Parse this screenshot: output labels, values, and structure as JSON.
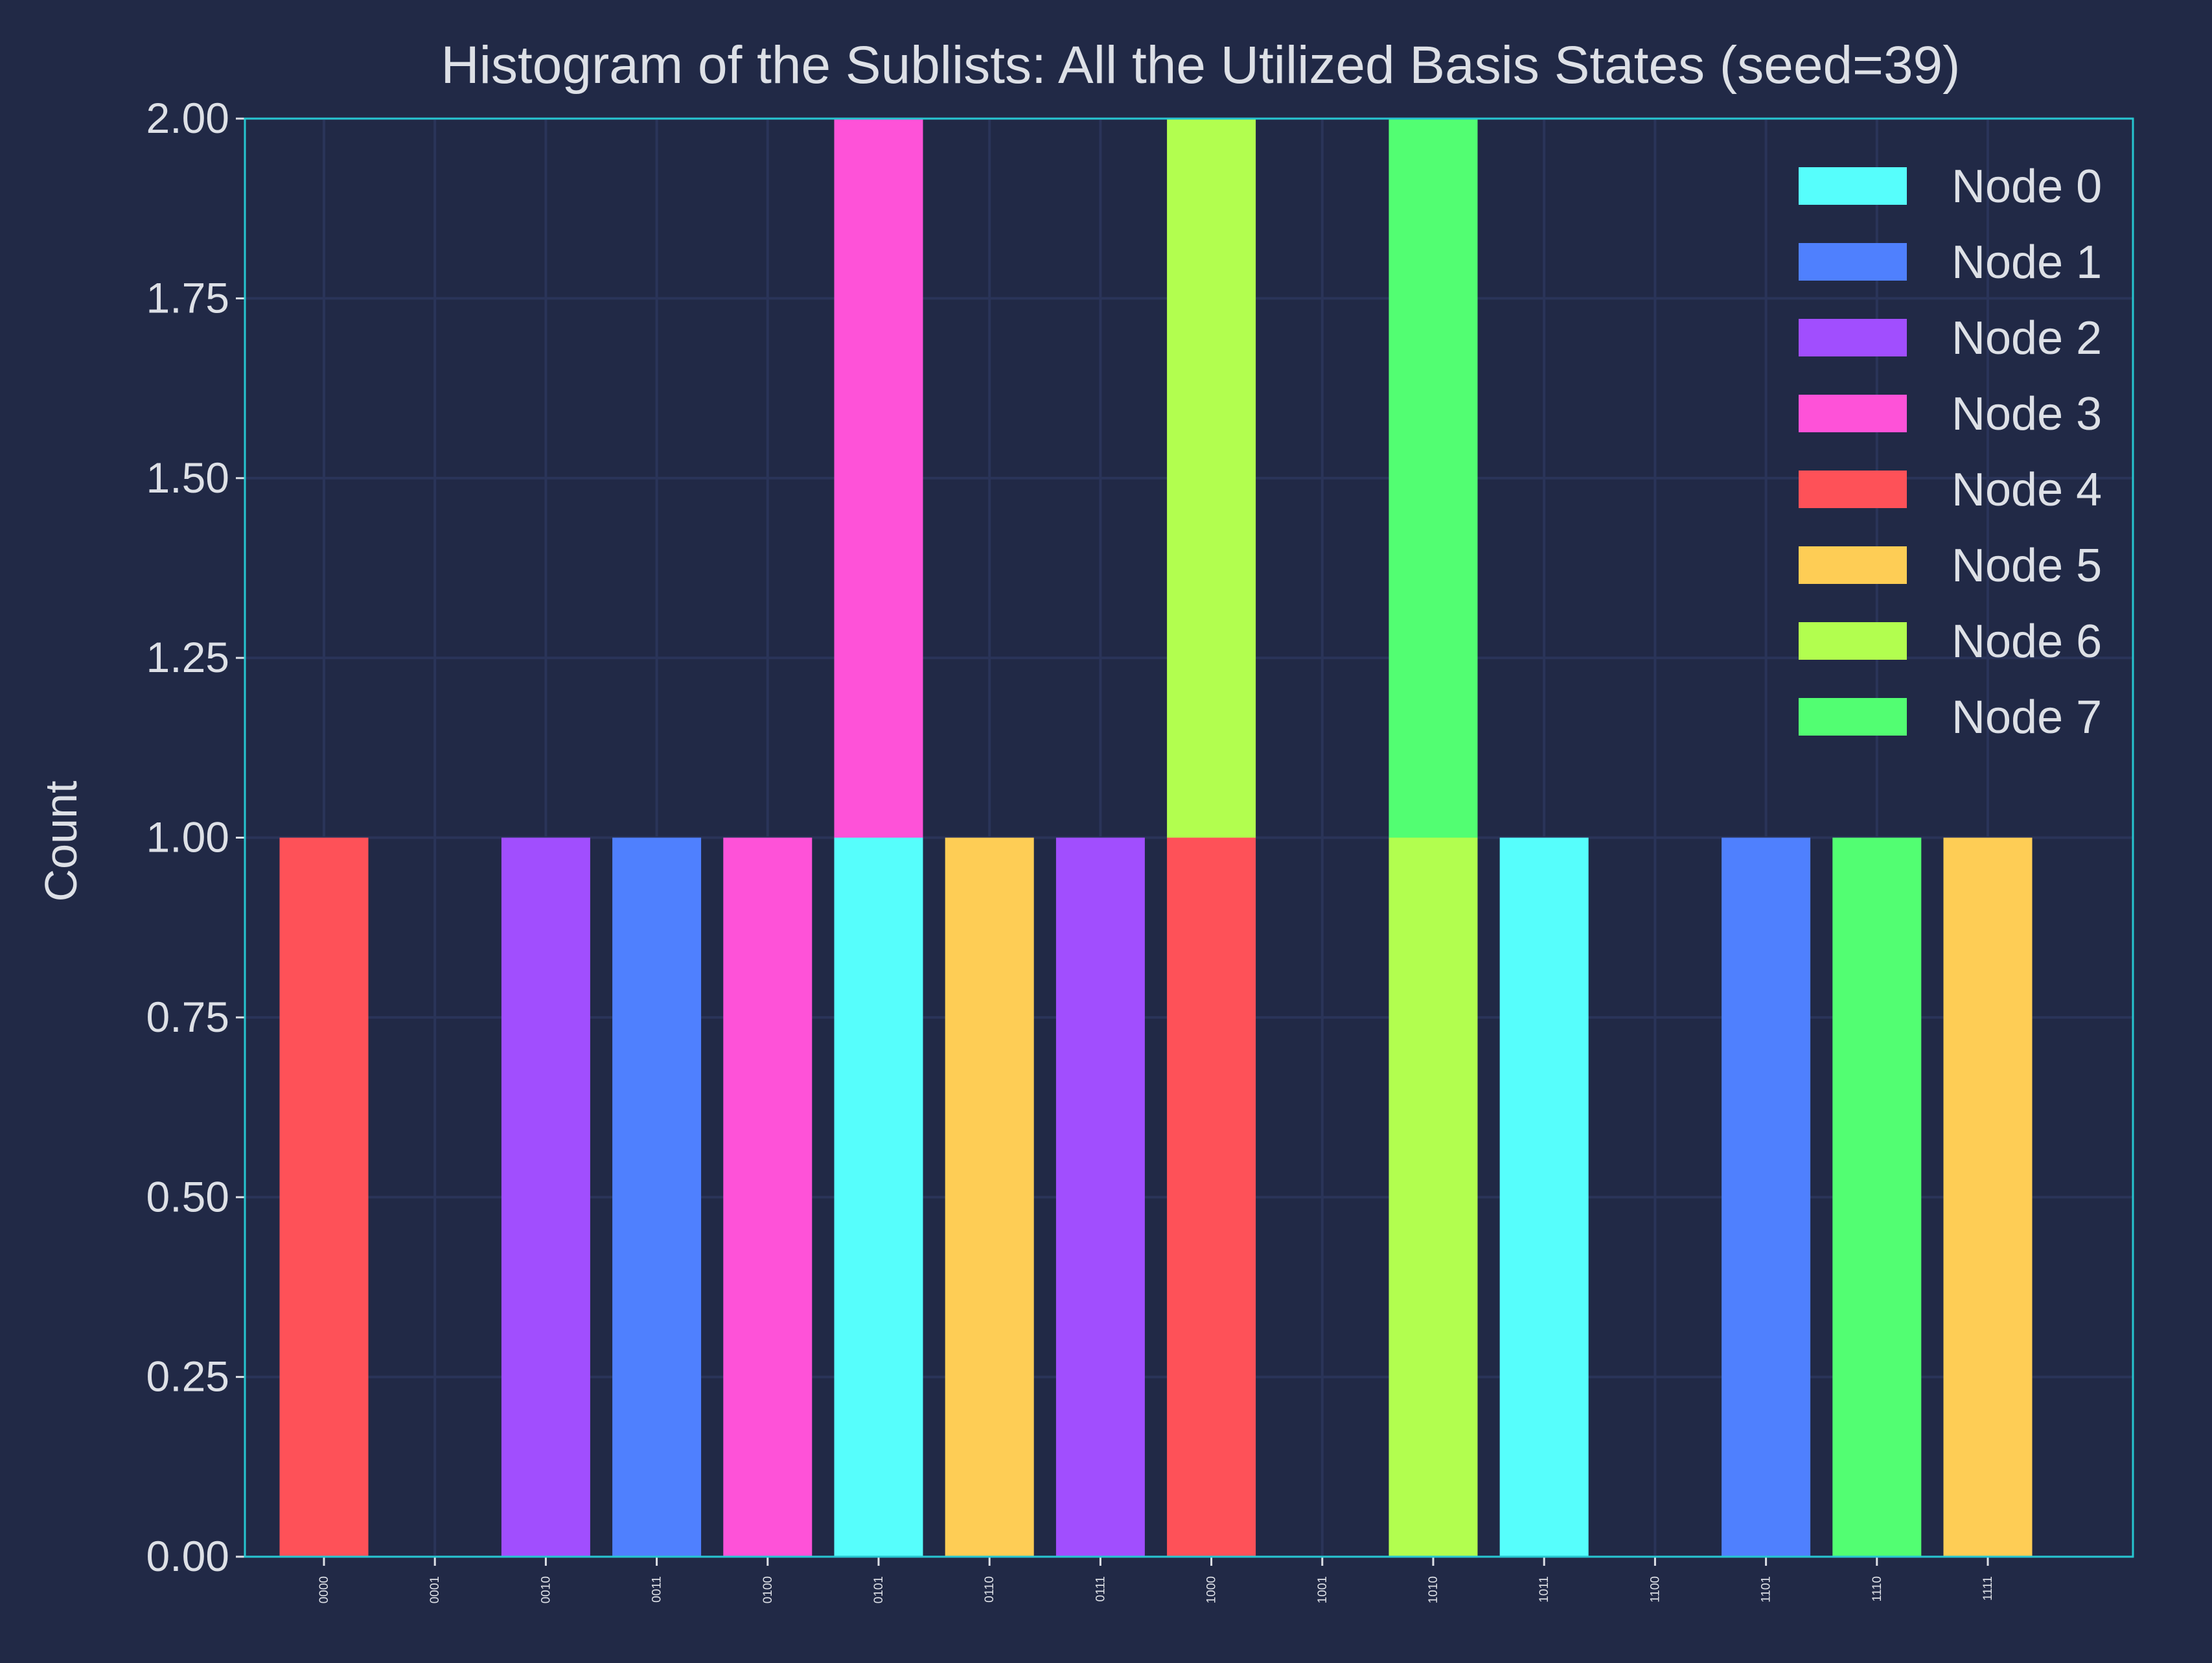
{
  "chart_data": {
    "type": "bar",
    "stacked": true,
    "title": "Histogram of the Sublists: All the Utilized Basis States (seed=39)",
    "xlabel": "",
    "ylabel": "Count",
    "ylim": [
      0,
      2
    ],
    "yticks": [
      "0.00",
      "0.25",
      "0.50",
      "0.75",
      "1.00",
      "1.25",
      "1.50",
      "1.75",
      "2.00"
    ],
    "grid": true,
    "legend_position": "top-right",
    "categories": [
      "0000",
      "0001",
      "0010",
      "0011",
      "0100",
      "0101",
      "0110",
      "0111",
      "1000",
      "1001",
      "1010",
      "1011",
      "1100",
      "1101",
      "1110",
      "1111"
    ],
    "series": [
      {
        "name": "Node 0",
        "color": "#56fefc",
        "values": [
          0,
          0,
          0,
          0,
          0,
          1,
          0,
          0,
          0,
          0,
          0,
          1,
          0,
          0,
          0,
          0
        ]
      },
      {
        "name": "Node 1",
        "color": "#4f80fe",
        "values": [
          0,
          0,
          0,
          1,
          0,
          0,
          0,
          0,
          0,
          0,
          0,
          0,
          0,
          1,
          0,
          0
        ]
      },
      {
        "name": "Node 2",
        "color": "#a14efe",
        "values": [
          0,
          0,
          1,
          0,
          0,
          0,
          0,
          1,
          0,
          0,
          0,
          0,
          0,
          0,
          0,
          0
        ]
      },
      {
        "name": "Node 3",
        "color": "#fe52d8",
        "values": [
          0,
          0,
          0,
          0,
          1,
          1,
          0,
          0,
          0,
          0,
          0,
          0,
          0,
          0,
          0,
          0
        ]
      },
      {
        "name": "Node 4",
        "color": "#fe5158",
        "values": [
          1,
          0,
          0,
          0,
          0,
          0,
          0,
          0,
          1,
          0,
          0,
          0,
          0,
          0,
          0,
          0
        ]
      },
      {
        "name": "Node 5",
        "color": "#fecd55",
        "values": [
          0,
          0,
          0,
          0,
          0,
          0,
          1,
          0,
          0,
          0,
          0,
          0,
          0,
          0,
          0,
          1
        ]
      },
      {
        "name": "Node 6",
        "color": "#b2fe4f",
        "values": [
          0,
          0,
          0,
          0,
          0,
          0,
          0,
          0,
          1,
          0,
          1,
          0,
          0,
          0,
          0,
          0
        ]
      },
      {
        "name": "Node 7",
        "color": "#52fe72",
        "values": [
          0,
          0,
          0,
          0,
          0,
          0,
          0,
          0,
          0,
          0,
          1,
          0,
          0,
          0,
          1,
          0
        ]
      }
    ],
    "colors": {
      "background": "#212946",
      "grid": "#2a3459",
      "axes": "#26c6d0",
      "text": "#dde0e6"
    }
  }
}
